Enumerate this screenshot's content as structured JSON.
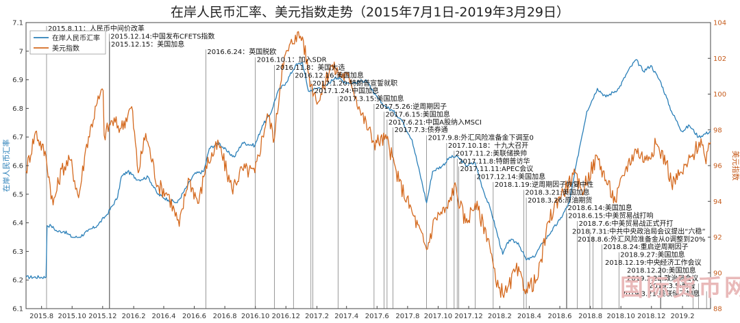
{
  "chart_data": {
    "type": "line",
    "title": "在岸人民币汇率、美元指数走势（2015年7月1日-2019年3月29日）",
    "ylabel_left": "在岸人民币汇率",
    "ylabel_right": "美元指数",
    "ylim_left": [
      6.1,
      7.1
    ],
    "ylim_right": [
      88,
      104
    ],
    "y_ticks_left": [
      "6.1",
      "6.2",
      "6.3",
      "6.4",
      "6.5",
      "6.6",
      "6.7",
      "6.8",
      "6.9",
      "7",
      "7.1"
    ],
    "y_ticks_right": [
      "88",
      "90",
      "92",
      "94",
      "96",
      "98",
      "100",
      "102",
      "104"
    ],
    "x_ticks": [
      "2015.8",
      "2015.10",
      "2015.12",
      "2016.2",
      "2016.4",
      "2016.6",
      "2016.8",
      "2016.10",
      "2016.12",
      "2017.2",
      "2017.4",
      "2017.6",
      "2017.8",
      "2017.10",
      "2017.12",
      "2018.2",
      "2018.4",
      "2018.6",
      "2018.8",
      "2018.10",
      "2018.12",
      "2019.2"
    ],
    "x_range": [
      "2015-07-01",
      "2019-03-29"
    ],
    "grid": false,
    "legend_position": "top-left",
    "series": [
      {
        "name": "在岸人民币汇率",
        "axis": "left",
        "color": "#2a7fb8",
        "points": [
          [
            "2015-07-01",
            6.21
          ],
          [
            "2015-08-10",
            6.21
          ],
          [
            "2015-08-12",
            6.39
          ],
          [
            "2015-08-20",
            6.39
          ],
          [
            "2015-09-01",
            6.37
          ],
          [
            "2015-09-15",
            6.37
          ],
          [
            "2015-10-01",
            6.35
          ],
          [
            "2015-10-15",
            6.35
          ],
          [
            "2015-11-01",
            6.37
          ],
          [
            "2015-11-20",
            6.39
          ],
          [
            "2015-12-10",
            6.43
          ],
          [
            "2015-12-31",
            6.49
          ],
          [
            "2016-01-07",
            6.56
          ],
          [
            "2016-01-20",
            6.58
          ],
          [
            "2016-02-10",
            6.55
          ],
          [
            "2016-03-01",
            6.56
          ],
          [
            "2016-03-20",
            6.5
          ],
          [
            "2016-04-10",
            6.48
          ],
          [
            "2016-04-28",
            6.47
          ],
          [
            "2016-05-15",
            6.52
          ],
          [
            "2016-06-01",
            6.57
          ],
          [
            "2016-06-20",
            6.58
          ],
          [
            "2016-07-01",
            6.66
          ],
          [
            "2016-07-20",
            6.68
          ],
          [
            "2016-08-05",
            6.65
          ],
          [
            "2016-08-20",
            6.63
          ],
          [
            "2016-09-05",
            6.68
          ],
          [
            "2016-09-30",
            6.67
          ],
          [
            "2016-10-15",
            6.74
          ],
          [
            "2016-10-31",
            6.78
          ],
          [
            "2016-11-15",
            6.86
          ],
          [
            "2016-12-01",
            6.89
          ],
          [
            "2016-12-20",
            6.95
          ],
          [
            "2017-01-03",
            6.96
          ],
          [
            "2017-01-15",
            6.86
          ],
          [
            "2017-02-01",
            6.87
          ],
          [
            "2017-02-20",
            6.88
          ],
          [
            "2017-03-10",
            6.91
          ],
          [
            "2017-04-01",
            6.89
          ],
          [
            "2017-04-20",
            6.89
          ],
          [
            "2017-05-10",
            6.9
          ],
          [
            "2017-05-26",
            6.85
          ],
          [
            "2017-06-15",
            6.81
          ],
          [
            "2017-07-03",
            6.79
          ],
          [
            "2017-07-20",
            6.76
          ],
          [
            "2017-08-10",
            6.69
          ],
          [
            "2017-09-08",
            6.47
          ],
          [
            "2017-09-20",
            6.58
          ],
          [
            "2017-10-10",
            6.6
          ],
          [
            "2017-10-25",
            6.63
          ],
          [
            "2017-11-10",
            6.63
          ],
          [
            "2017-11-25",
            6.6
          ],
          [
            "2017-12-14",
            6.61
          ],
          [
            "2017-12-29",
            6.52
          ],
          [
            "2018-01-15",
            6.44
          ],
          [
            "2018-02-07",
            6.29
          ],
          [
            "2018-02-20",
            6.34
          ],
          [
            "2018-03-10",
            6.33
          ],
          [
            "2018-03-26",
            6.27
          ],
          [
            "2018-04-10",
            6.28
          ],
          [
            "2018-04-28",
            6.33
          ],
          [
            "2018-05-15",
            6.37
          ],
          [
            "2018-06-01",
            6.41
          ],
          [
            "2018-06-20",
            6.47
          ],
          [
            "2018-07-10",
            6.66
          ],
          [
            "2018-07-25",
            6.79
          ],
          [
            "2018-08-15",
            6.87
          ],
          [
            "2018-09-01",
            6.84
          ],
          [
            "2018-09-27",
            6.87
          ],
          [
            "2018-10-15",
            6.93
          ],
          [
            "2018-10-31",
            6.97
          ],
          [
            "2018-11-15",
            6.93
          ],
          [
            "2018-11-30",
            6.95
          ],
          [
            "2018-12-20",
            6.89
          ],
          [
            "2019-01-10",
            6.79
          ],
          [
            "2019-01-31",
            6.72
          ],
          [
            "2019-02-15",
            6.74
          ],
          [
            "2019-03-05",
            6.7
          ],
          [
            "2019-03-29",
            6.72
          ]
        ]
      },
      {
        "name": "美元指数",
        "axis": "right",
        "color": "#d4691e",
        "points": [
          [
            "2015-07-01",
            95.7
          ],
          [
            "2015-07-20",
            97.9
          ],
          [
            "2015-08-10",
            96.5
          ],
          [
            "2015-08-24",
            93.8
          ],
          [
            "2015-09-10",
            95.8
          ],
          [
            "2015-09-28",
            96.3
          ],
          [
            "2015-10-14",
            94.2
          ],
          [
            "2015-10-30",
            97.2
          ],
          [
            "2015-11-20",
            99.5
          ],
          [
            "2015-12-02",
            100.2
          ],
          [
            "2015-12-04",
            97.7
          ],
          [
            "2015-12-20",
            98.5
          ],
          [
            "2016-01-07",
            98.1
          ],
          [
            "2016-01-28",
            99.3
          ],
          [
            "2016-02-10",
            95.6
          ],
          [
            "2016-02-25",
            97.8
          ],
          [
            "2016-03-20",
            94.9
          ],
          [
            "2016-04-10",
            94.4
          ],
          [
            "2016-05-02",
            92.6
          ],
          [
            "2016-05-20",
            95.3
          ],
          [
            "2016-06-10",
            93.9
          ],
          [
            "2016-06-24",
            96.0
          ],
          [
            "2016-07-20",
            97.2
          ],
          [
            "2016-08-15",
            94.7
          ],
          [
            "2016-09-05",
            95.8
          ],
          [
            "2016-09-30",
            95.6
          ],
          [
            "2016-10-25",
            98.9
          ],
          [
            "2016-11-08",
            97.5
          ],
          [
            "2016-11-24",
            101.7
          ],
          [
            "2016-12-20",
            103.3
          ],
          [
            "2017-01-03",
            103.2
          ],
          [
            "2017-01-20",
            100.5
          ],
          [
            "2017-02-05",
            99.6
          ],
          [
            "2017-02-28",
            101.6
          ],
          [
            "2017-03-15",
            101.2
          ],
          [
            "2017-04-10",
            100.8
          ],
          [
            "2017-04-28",
            99.1
          ],
          [
            "2017-05-26",
            97.3
          ],
          [
            "2017-06-20",
            97.5
          ],
          [
            "2017-07-15",
            95.1
          ],
          [
            "2017-08-10",
            93.4
          ],
          [
            "2017-09-08",
            91.3
          ],
          [
            "2017-09-25",
            93.1
          ],
          [
            "2017-10-20",
            93.6
          ],
          [
            "2017-11-02",
            94.9
          ],
          [
            "2017-11-25",
            92.8
          ],
          [
            "2017-12-14",
            93.9
          ],
          [
            "2018-01-10",
            91.9
          ],
          [
            "2018-01-26",
            89.2
          ],
          [
            "2018-02-15",
            88.9
          ],
          [
            "2018-03-05",
            90.2
          ],
          [
            "2018-03-26",
            89.1
          ],
          [
            "2018-04-17",
            89.6
          ],
          [
            "2018-05-10",
            92.9
          ],
          [
            "2018-05-29",
            94.2
          ],
          [
            "2018-06-15",
            94.8
          ],
          [
            "2018-06-28",
            95.5
          ],
          [
            "2018-07-15",
            94.6
          ],
          [
            "2018-08-15",
            96.5
          ],
          [
            "2018-09-01",
            95.2
          ],
          [
            "2018-09-20",
            94.0
          ],
          [
            "2018-10-10",
            95.8
          ],
          [
            "2018-10-31",
            96.9
          ],
          [
            "2018-11-20",
            96.3
          ],
          [
            "2018-12-10",
            97.2
          ],
          [
            "2018-12-31",
            96.2
          ],
          [
            "2019-01-10",
            95.0
          ],
          [
            "2019-01-31",
            95.6
          ],
          [
            "2019-02-20",
            96.5
          ],
          [
            "2019-03-10",
            97.5
          ],
          [
            "2019-03-20",
            96.1
          ],
          [
            "2019-03-29",
            97.3
          ]
        ]
      }
    ],
    "annotations": [
      {
        "date": "2015-08-11",
        "text": "2015.8.11：人民币中间价改革",
        "row": 0
      },
      {
        "date": "2015-12-14",
        "text": "2015.12.14:中国发布CFETS指数",
        "row": 1
      },
      {
        "date": "2015-12-15",
        "text": "2015.12.15：美国加息",
        "row": 2
      },
      {
        "date": "2016-06-24",
        "text": "2016.6.24：英国脱欧",
        "row": 3
      },
      {
        "date": "2016-10-01",
        "text": "2016.10.1：加入SDR",
        "row": 4
      },
      {
        "date": "2016-11-08",
        "text": "2016.11.8：美国大选",
        "row": 5
      },
      {
        "date": "2016-12-16",
        "text": "2016.12.16:美国加息",
        "row": 6
      },
      {
        "date": "2017-01-20",
        "text": "2017.1.20:特朗普宣誓就职",
        "row": 7
      },
      {
        "date": "2017-01-24",
        "text": "2017.1.24:中国加息",
        "row": 8
      },
      {
        "date": "2017-03-15",
        "text": "2017.3.15:美国加息",
        "row": 9
      },
      {
        "date": "2017-05-26",
        "text": "2017.5.26:逆周期因子",
        "row": 10
      },
      {
        "date": "2017-06-15",
        "text": "2017.6.15:美国加息",
        "row": 11
      },
      {
        "date": "2017-06-21",
        "text": "2017.6.21:中国A股纳入MSCI",
        "row": 12
      },
      {
        "date": "2017-07-03",
        "text": "2017.7.3:债券通",
        "row": 13
      },
      {
        "date": "2017-09-08",
        "text": "2017.9.8:外汇风险准备金下调至0",
        "row": 14
      },
      {
        "date": "2017-10-18",
        "text": "2017.10.18：十九大召开",
        "row": 15
      },
      {
        "date": "2017-11-02",
        "text": "2017.11.2:美联储换帅",
        "row": 16
      },
      {
        "date": "2017-11-08",
        "text": "2017.11.8:特朗普访华",
        "row": 17
      },
      {
        "date": "2017-11-11",
        "text": "2017.11.11:APEC会议",
        "row": 18
      },
      {
        "date": "2017-12-14",
        "text": "2017.12.14:美国加息",
        "row": 19
      },
      {
        "date": "2018-01-19",
        "text": "2018.1.19:逆周期因子恢复中性",
        "row": 20
      },
      {
        "date": "2018-03-21",
        "text": "2018.3.21:美国加息",
        "row": 21
      },
      {
        "date": "2018-03-26",
        "text": "2018.3.26:原油期货",
        "row": 22
      },
      {
        "date": "2018-06-14",
        "text": "2018.6.14:美国加息",
        "row": 23
      },
      {
        "date": "2018-06-15",
        "text": "2018.6.15:中美贸易战打响",
        "row": 24
      },
      {
        "date": "2018-07-06",
        "text": "2018.7.6:中美贸易战正式开打",
        "row": 25
      },
      {
        "date": "2018-07-31",
        "text": "2018.7.31:中共中央政治局会议提出“六稳”",
        "row": 26
      },
      {
        "date": "2018-08-06",
        "text": "2018.8.6:外汇风险准备金从0调整到20%",
        "row": 27
      },
      {
        "date": "2018-08-24",
        "text": "2018.8.24:重启逆周期因子",
        "row": 28
      },
      {
        "date": "2018-09-27",
        "text": "2018.9.27:美国加息",
        "row": 29
      },
      {
        "date": "2018-12-19",
        "text": "2018.12.19:中央经济工作会议",
        "row": 30
      },
      {
        "date": "2018-12-20",
        "text": "2018.12.20:美国加息",
        "row": 31
      },
      {
        "date": "2019-02-22",
        "text": "2019.2.22:政治局会议",
        "row": 32
      },
      {
        "date": "2019-03-05",
        "text": "2019.3.5:两会",
        "row": 33
      },
      {
        "date": "2019-03-21",
        "text": "2019.3.21:美联储不加息",
        "row": 34
      }
    ]
  },
  "watermark": "国际货币网"
}
